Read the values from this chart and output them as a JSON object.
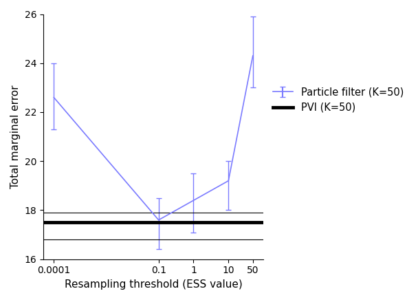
{
  "x_labels": [
    "0.0001",
    "0.1",
    "1",
    "10",
    "50"
  ],
  "x_values": [
    0.0001,
    0.1,
    1,
    10,
    50
  ],
  "y_values": [
    22.6,
    17.6,
    18.4,
    19.2,
    24.3
  ],
  "y_err_lower": [
    1.3,
    1.2,
    1.3,
    1.2,
    1.3
  ],
  "y_err_upper": [
    1.4,
    0.9,
    1.1,
    0.8,
    1.6
  ],
  "pf_color": "#7b7bff",
  "pf_label": "Particle filter (K=50)",
  "pvi_value": 17.5,
  "pvi_lower": 16.8,
  "pvi_upper": 17.9,
  "pvi_color": "black",
  "pvi_label": "PVI (K=50)",
  "xlabel": "Resampling threshold (ESS value)",
  "ylabel": "Total marginal error",
  "ylim": [
    16,
    26
  ],
  "yticks": [
    16,
    18,
    20,
    22,
    24,
    26
  ],
  "title": ""
}
